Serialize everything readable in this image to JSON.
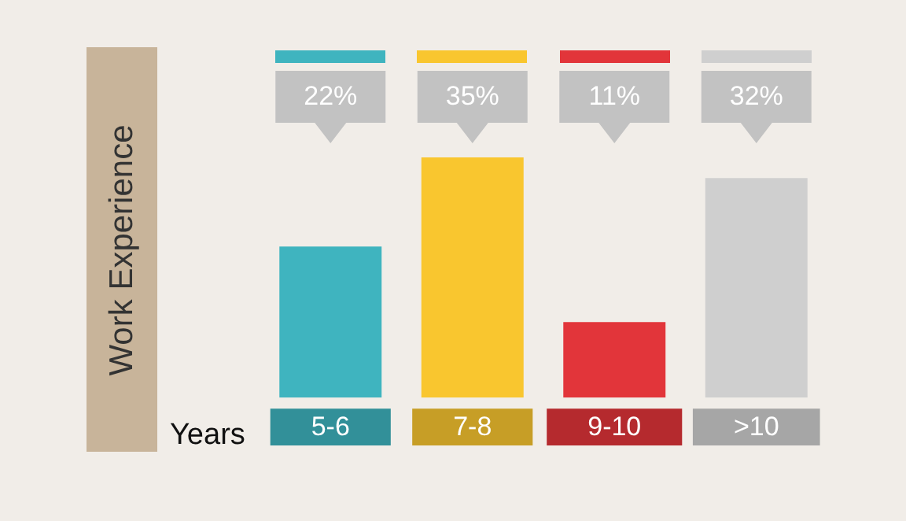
{
  "chart_data": {
    "type": "bar",
    "xlabel": "Years",
    "ylabel": "Work Experience",
    "categories": [
      "5-6",
      "7-8",
      "9-10",
      ">10"
    ],
    "values": [
      22,
      35,
      11,
      32
    ],
    "colors": [
      "#3fb4bf",
      "#f9c62f",
      "#e2353a",
      "#cfcfcf"
    ],
    "value_labels": [
      "22%",
      "35%",
      "11%",
      "32%"
    ]
  }
}
